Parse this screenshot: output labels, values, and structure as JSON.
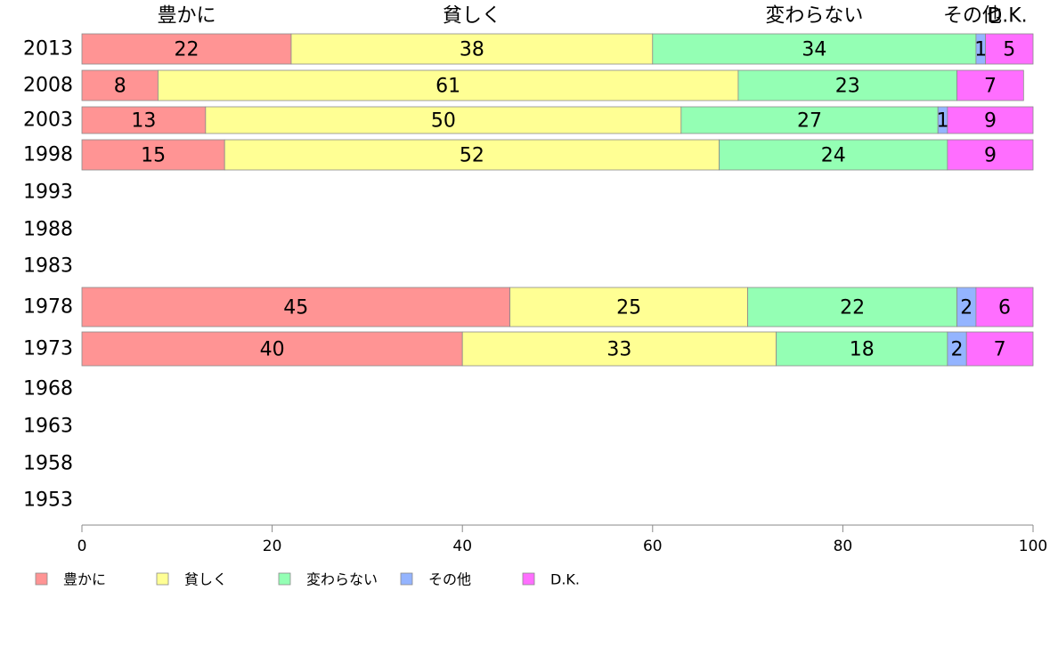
{
  "chart_data": {
    "type": "bar",
    "orientation": "horizontal",
    "stacked": true,
    "categories": [
      "2013",
      "2008",
      "2003",
      "1998",
      "1993",
      "1988",
      "1983",
      "1978",
      "1973",
      "1968",
      "1963",
      "1958",
      "1953"
    ],
    "series": [
      {
        "name": "豊かに",
        "color": "#ff9494",
        "values": [
          22,
          8,
          13,
          15,
          null,
          null,
          null,
          45,
          40,
          null,
          null,
          null,
          null
        ]
      },
      {
        "name": "貧しく",
        "color": "#ffff94",
        "values": [
          38,
          61,
          50,
          52,
          null,
          null,
          null,
          25,
          33,
          null,
          null,
          null,
          null
        ]
      },
      {
        "name": "変わらない",
        "color": "#94ffb4",
        "values": [
          34,
          23,
          27,
          24,
          null,
          null,
          null,
          22,
          18,
          null,
          null,
          null,
          null
        ]
      },
      {
        "name": "その他",
        "color": "#94b4ff",
        "values": [
          1,
          0,
          1,
          0,
          null,
          null,
          null,
          2,
          2,
          null,
          null,
          null,
          null
        ]
      },
      {
        "name": "D.K.",
        "color": "#ff6eff",
        "values": [
          5,
          7,
          9,
          9,
          null,
          null,
          null,
          6,
          7,
          null,
          null,
          null,
          null
        ]
      }
    ],
    "top_labels": [
      "豊かに",
      "貧しく",
      "変わらない",
      "その他",
      "D.K."
    ],
    "xlim": [
      0,
      100
    ],
    "xticks": [
      0,
      20,
      40,
      60,
      80,
      100
    ],
    "grid": false,
    "legend_position": "bottom-left"
  }
}
